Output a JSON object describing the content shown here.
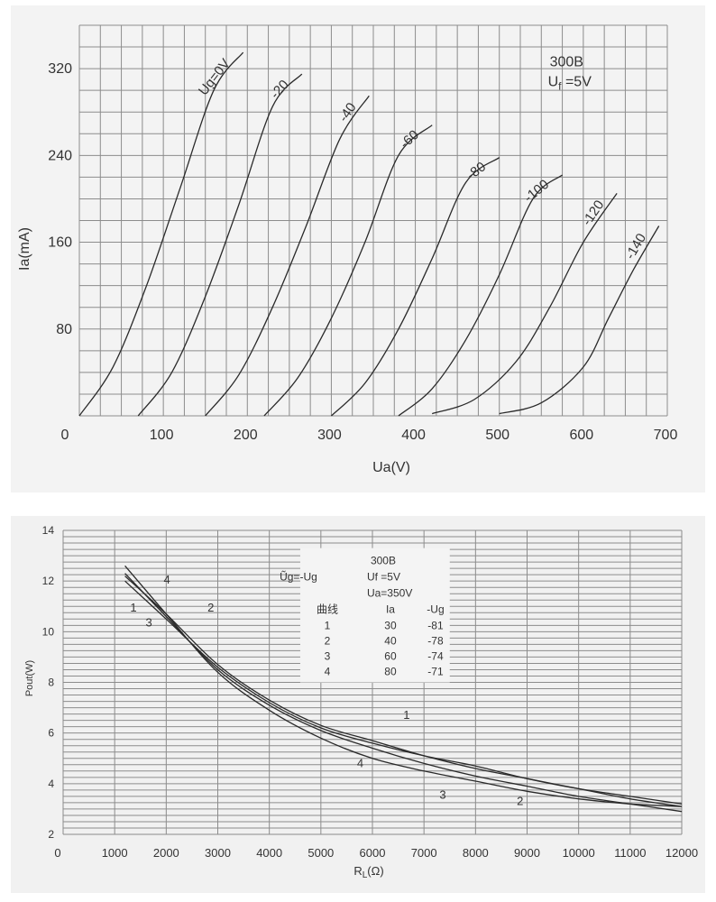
{
  "chart_data": [
    {
      "type": "line",
      "xlabel": "Ua(V)",
      "ylabel": "Ia(mA)",
      "xlim": [
        0,
        700
      ],
      "ylim": [
        0,
        360
      ],
      "xticks": [
        "0",
        "100",
        "200",
        "300",
        "400",
        "500",
        "600",
        "700"
      ],
      "yticks": [
        "80",
        "160",
        "240",
        "320"
      ],
      "grid": true,
      "annotation": {
        "line1": "300B",
        "line2": "U",
        "sub": "f",
        "line2_rest": " =5V"
      },
      "series": [
        {
          "name": "Ug=0V",
          "x": [
            0,
            40,
            80,
            120,
            160,
            195
          ],
          "y": [
            0,
            45,
            120,
            210,
            300,
            335
          ]
        },
        {
          "name": "-20",
          "x": [
            70,
            110,
            150,
            190,
            230,
            265
          ],
          "y": [
            0,
            40,
            110,
            195,
            285,
            315
          ]
        },
        {
          "name": "-40",
          "x": [
            150,
            190,
            230,
            270,
            310,
            345
          ],
          "y": [
            0,
            38,
            100,
            175,
            255,
            295
          ]
        },
        {
          "name": "-60",
          "x": [
            220,
            260,
            300,
            340,
            380,
            420
          ],
          "y": [
            0,
            35,
            90,
            160,
            240,
            268
          ]
        },
        {
          "name": "-80",
          "x": [
            300,
            340,
            380,
            420,
            460,
            500
          ],
          "y": [
            0,
            30,
            80,
            145,
            215,
            238
          ]
        },
        {
          "name": "-100",
          "x": [
            380,
            420,
            460,
            500,
            540,
            575
          ],
          "y": [
            0,
            25,
            70,
            130,
            200,
            222
          ]
        },
        {
          "name": "-120",
          "x": [
            420,
            470,
            520,
            560,
            600,
            640
          ],
          "y": [
            2,
            15,
            50,
            100,
            160,
            205
          ]
        },
        {
          "name": "-140",
          "x": [
            500,
            550,
            600,
            630,
            660,
            690
          ],
          "y": [
            2,
            12,
            45,
            90,
            135,
            175
          ]
        }
      ]
    },
    {
      "type": "line",
      "xlabel_main": "R",
      "xlabel_sub": "L",
      "xlabel_rest": "(Ω)",
      "ylabel": "Pout(W)",
      "xlim": [
        0,
        12000
      ],
      "ylim": [
        2,
        14
      ],
      "xticks": [
        "0",
        "1000",
        "2000",
        "3000",
        "4000",
        "5000",
        "6000",
        "7000",
        "8000",
        "9000",
        "10000",
        "11000",
        "12000"
      ],
      "yticks": [
        "2",
        "4",
        "6",
        "8",
        "10",
        "12",
        "14"
      ],
      "grid": true,
      "legend_box": {
        "title": "300B",
        "ug_label": "Ũg=-Ug",
        "uf": "Uf =5V",
        "ua": "Ua=350V",
        "headers": [
          "曲线",
          "Ia",
          "-Ug"
        ],
        "rows": [
          [
            "1",
            "30",
            "-81"
          ],
          [
            "2",
            "40",
            "-78"
          ],
          [
            "3",
            "60",
            "-74"
          ],
          [
            "4",
            "80",
            "-71"
          ]
        ]
      },
      "series": [
        {
          "name": "1",
          "x": [
            1200,
            2000,
            3000,
            4000,
            5000,
            6000,
            7000,
            8000,
            9000,
            10000,
            11000,
            12000
          ],
          "y": [
            12.0,
            10.5,
            8.6,
            7.2,
            6.2,
            5.6,
            5.1,
            4.7,
            4.2,
            3.8,
            3.5,
            3.2
          ]
        },
        {
          "name": "2",
          "x": [
            1200,
            2000,
            3000,
            4000,
            5000,
            6000,
            7000,
            8000,
            9000,
            10000,
            11000,
            12000
          ],
          "y": [
            12.2,
            10.7,
            8.7,
            7.3,
            6.3,
            5.7,
            5.1,
            4.6,
            4.2,
            3.8,
            3.4,
            3.1
          ]
        },
        {
          "name": "3",
          "x": [
            1200,
            2000,
            3000,
            4000,
            5000,
            6000,
            7000,
            8000,
            9000,
            10000,
            11000,
            12000
          ],
          "y": [
            12.3,
            10.6,
            8.5,
            7.1,
            6.1,
            5.4,
            4.8,
            4.3,
            3.9,
            3.5,
            3.2,
            2.9
          ]
        },
        {
          "name": "4",
          "x": [
            1200,
            2000,
            3000,
            4000,
            5000,
            6000,
            7000,
            8000,
            9000,
            10000,
            11000,
            12000
          ],
          "y": [
            12.6,
            10.7,
            8.4,
            6.9,
            5.8,
            5.0,
            4.5,
            4.1,
            3.7,
            3.4,
            3.2,
            3.1
          ]
        }
      ],
      "curve_labels": [
        "1",
        "2",
        "3",
        "4"
      ]
    }
  ]
}
